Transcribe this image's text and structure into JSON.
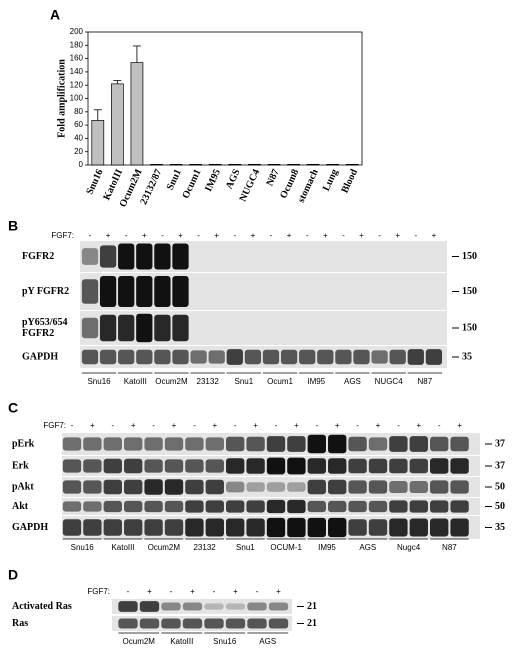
{
  "chart_data": {
    "type": "bar",
    "panel_label": "A",
    "ylabel": "Fold amplification",
    "categories": [
      "Snu16",
      "KatoIII",
      "Ocum2M",
      "23132/87",
      "Snu1",
      "Ocum1",
      "IM95",
      "AGS",
      "NUGC4",
      "N87",
      "Ocum8",
      "stomach",
      "Lung",
      "Blood"
    ],
    "values": [
      67,
      122,
      154,
      1,
      1,
      1,
      1,
      1,
      1,
      1,
      1,
      1,
      1,
      1
    ],
    "errors": [
      16,
      5,
      25,
      0,
      0,
      0,
      0,
      0,
      0,
      0,
      0,
      0,
      0,
      0
    ],
    "ylim": [
      0,
      200
    ],
    "yticks": [
      0,
      20,
      40,
      60,
      80,
      100,
      120,
      140,
      160,
      180,
      200
    ],
    "color": "#c0c0c0"
  },
  "panel_b": {
    "label": "B",
    "treatment_label": "FGF7:",
    "treatment": [
      "-",
      "+"
    ],
    "rows": [
      {
        "name": [
          "FGFR2"
        ],
        "marker": 150
      },
      {
        "name": [
          "pY FGFR2"
        ],
        "marker": 150
      },
      {
        "name": [
          "pY653/654",
          "FGFR2"
        ],
        "marker": 150
      },
      {
        "name": [
          "GAPDH"
        ],
        "marker": 35
      }
    ],
    "cell_lines": [
      "Snu16",
      "KatoIII",
      "Ocum2M",
      "23132",
      "Snu1",
      "Ocum1",
      "IM95",
      "AGS",
      "NUGC4",
      "N87"
    ]
  },
  "panel_c": {
    "label": "C",
    "treatment_label": "FGF7:",
    "treatment": [
      "-",
      "+"
    ],
    "rows": [
      {
        "name": [
          "pErk"
        ],
        "marker": 37
      },
      {
        "name": [
          "Erk"
        ],
        "marker": 37
      },
      {
        "name": [
          "pAkt"
        ],
        "marker": 50
      },
      {
        "name": [
          "Akt"
        ],
        "marker": 50
      },
      {
        "name": [
          "GAPDH"
        ],
        "marker": 35
      }
    ],
    "cell_lines": [
      "Snu16",
      "KatoIII",
      "Ocum2M",
      "23132",
      "Snu1",
      "OCUM-1",
      "IM95",
      "AGS",
      "Nugc4",
      "N87"
    ]
  },
  "panel_d": {
    "label": "D",
    "treatment_label": "FGF7:",
    "treatment": [
      "-",
      "+"
    ],
    "rows": [
      {
        "name": [
          "Activated Ras"
        ],
        "marker": 21
      },
      {
        "name": [
          "Ras"
        ],
        "marker": 21
      }
    ],
    "cell_lines": [
      "Ocum2M",
      "KatoIII",
      "Snu16",
      "AGS"
    ]
  }
}
